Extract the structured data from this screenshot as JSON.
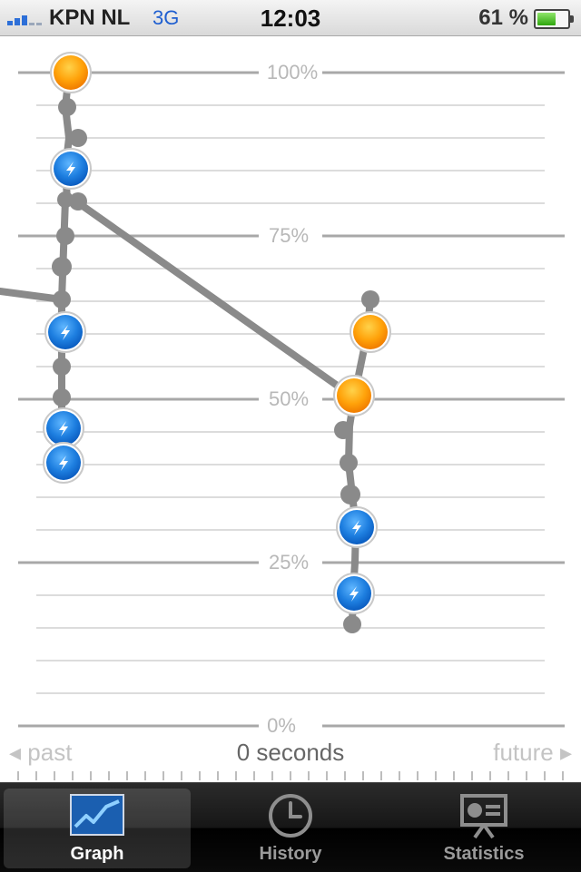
{
  "status_bar": {
    "carrier": "KPN NL",
    "network": "3G",
    "time": "12:03",
    "battery_percent_text": "61 %",
    "battery_level": 0.61,
    "signal_bars_active": 3,
    "signal_bars_total": 5
  },
  "graph": {
    "y_labels": [
      "100%",
      "75%",
      "50%",
      "25%",
      "0%"
    ],
    "colors": {
      "line": "#8a8a8a",
      "gridline": "#a8a8a8",
      "minor_gridline": "#dcdcdc",
      "label": "#b8b8b8",
      "charge_marker": "#1e7fe0",
      "full_marker": "#ff9f00"
    }
  },
  "timeline": {
    "past_label": "◂ past",
    "center_label": "0 seconds",
    "future_label": "future ▸"
  },
  "tabs": [
    {
      "label": "Graph",
      "icon": "graph-icon",
      "active": true
    },
    {
      "label": "History",
      "icon": "clock-icon",
      "active": false
    },
    {
      "label": "Statistics",
      "icon": "presentation-icon",
      "active": false
    }
  ]
}
